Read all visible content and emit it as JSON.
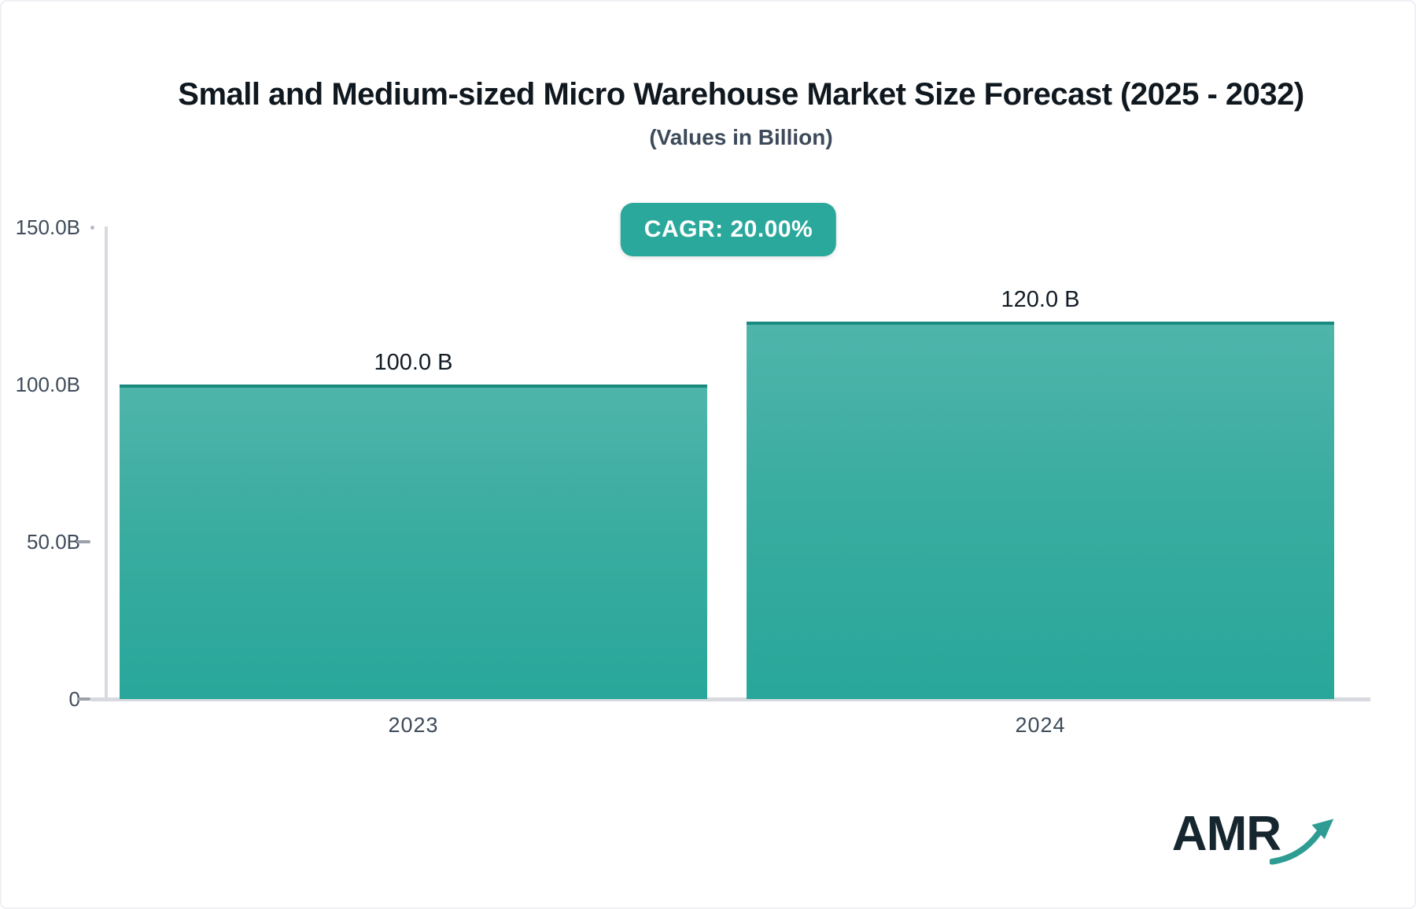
{
  "header": {
    "title": "Small and Medium-sized Micro Warehouse Market Size Forecast (2025 - 2032)",
    "subtitle": "(Values in Billion)",
    "cagr_badge": "CAGR: 20.00%"
  },
  "chart_data": {
    "type": "bar",
    "title": "Small and Medium-sized Micro Warehouse Market Size Forecast (2025 - 2032)",
    "subtitle": "(Values in Billion)",
    "cagr": "20.00%",
    "unit": "Billion",
    "categories": [
      "2023",
      "2024"
    ],
    "values": [
      100.0,
      120.0
    ],
    "value_labels": [
      "100.0 B",
      "120.0 B"
    ],
    "ylim": [
      0,
      150
    ],
    "yticks": [
      {
        "label": "150.0B",
        "value": 150,
        "marker": "dot"
      },
      {
        "label": "100.0B",
        "value": 100,
        "marker": "none"
      },
      {
        "label": "50.0B",
        "value": 50,
        "marker": "dash"
      },
      {
        "label": "0",
        "value": 0,
        "marker": "dash"
      }
    ],
    "grid": false,
    "legend": false,
    "xlabel": "",
    "ylabel": ""
  },
  "colors": {
    "accent_teal": "#2aa89c",
    "bar_gradient_top": "#4fb5ab",
    "bar_gradient_bottom": "#28a79a",
    "bar_top_border": "#1a8a7f",
    "axis_gray": "#d8dae0",
    "title_text": "#10181f",
    "label_text": "#3f4b5a"
  },
  "logo": {
    "text": "AMR"
  }
}
